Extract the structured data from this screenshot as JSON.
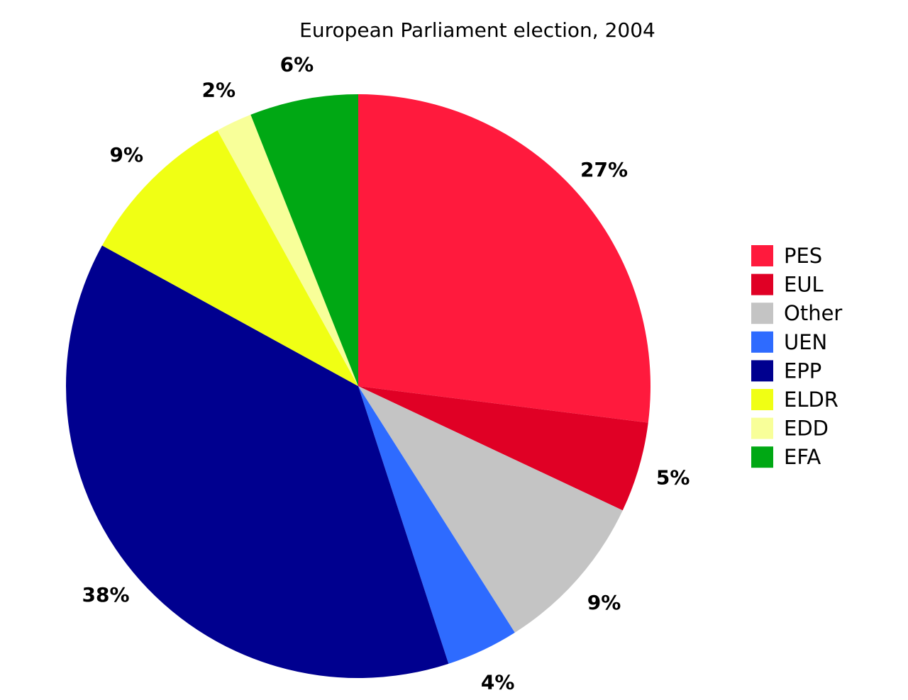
{
  "chart_data": {
    "type": "pie",
    "title": "European Parliament election, 2004",
    "start_angle": "top, clockwise",
    "legend_position": "right",
    "slices": [
      {
        "label": "PES",
        "value": 27,
        "display": "27%",
        "color": "#ff1a3d"
      },
      {
        "label": "EUL",
        "value": 5,
        "display": "5%",
        "color": "#e00025"
      },
      {
        "label": "Other",
        "value": 9,
        "display": "9%",
        "color": "#c4c4c4"
      },
      {
        "label": "UEN",
        "value": 4,
        "display": "4%",
        "color": "#2e6bff"
      },
      {
        "label": "EPP",
        "value": 38,
        "display": "38%",
        "color": "#00008f"
      },
      {
        "label": "ELDR",
        "value": 9,
        "display": "9%",
        "color": "#f0ff14"
      },
      {
        "label": "EDD",
        "value": 2,
        "display": "2%",
        "color": "#f8ff99"
      },
      {
        "label": "EFA",
        "value": 6,
        "display": "6%",
        "color": "#00a814"
      }
    ]
  }
}
